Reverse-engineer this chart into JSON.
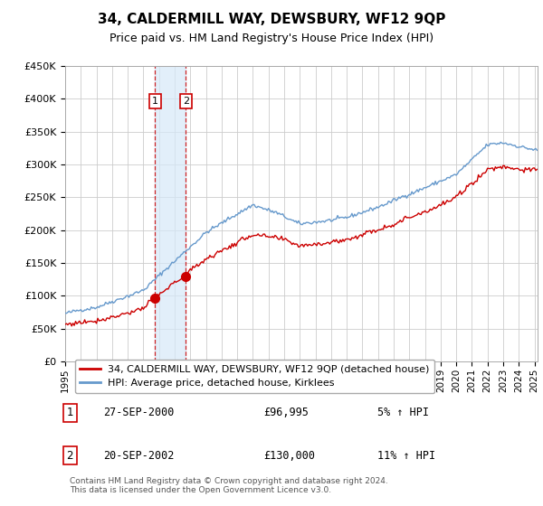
{
  "title": "34, CALDERMILL WAY, DEWSBURY, WF12 9QP",
  "subtitle": "Price paid vs. HM Land Registry's House Price Index (HPI)",
  "ylim": [
    0,
    450000
  ],
  "yticks": [
    0,
    50000,
    100000,
    150000,
    200000,
    250000,
    300000,
    350000,
    400000,
    450000
  ],
  "ytick_labels": [
    "£0",
    "£50K",
    "£100K",
    "£150K",
    "£200K",
    "£250K",
    "£300K",
    "£350K",
    "£400K",
    "£450K"
  ],
  "line1_color": "#cc0000",
  "line2_color": "#6699cc",
  "transaction1_date": 2000.75,
  "transaction1_price": 96995,
  "transaction2_date": 2002.72,
  "transaction2_price": 130000,
  "legend1": "34, CALDERMILL WAY, DEWSBURY, WF12 9QP (detached house)",
  "legend2": "HPI: Average price, detached house, Kirklees",
  "sale1_label": "1",
  "sale1_date_str": "27-SEP-2000",
  "sale1_price_str": "£96,995",
  "sale1_hpi_str": "5% ↑ HPI",
  "sale2_label": "2",
  "sale2_date_str": "20-SEP-2002",
  "sale2_price_str": "£130,000",
  "sale2_hpi_str": "11% ↑ HPI",
  "footnote": "Contains HM Land Registry data © Crown copyright and database right 2024.\nThis data is licensed under the Open Government Licence v3.0.",
  "shaded_color": "#d6e9f8",
  "shaded_alpha": 0.7,
  "background_color": "#ffffff",
  "grid_color": "#cccccc"
}
